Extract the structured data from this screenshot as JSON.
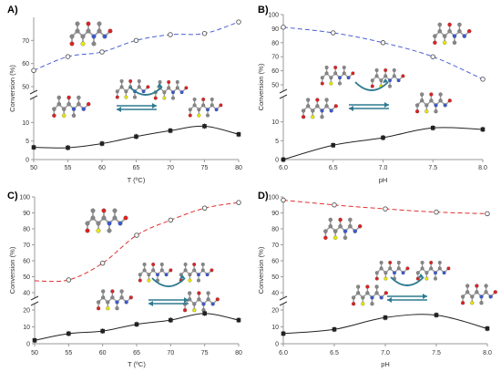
{
  "colors": {
    "panel_A_upper": "#4a5fd0",
    "panel_B_upper": "#4a5fd0",
    "panel_C_upper": "#e03030",
    "panel_D_upper": "#e03030",
    "lower": "#222222",
    "arrow": "#2e7a8f"
  },
  "icons": [
    "molecule-ball-stick-icon",
    "reaction-curved-arrow-icon",
    "equilibrium-arrows-icon"
  ],
  "chart_data": [
    {
      "panel": "A)",
      "type": "line",
      "xlabel": "T (ºC)",
      "ylabel": "Conversion (%)",
      "xlim": [
        50,
        80
      ],
      "xticks": [
        "50",
        "55",
        "60",
        "65",
        "70",
        "75",
        "80"
      ],
      "y_upper": {
        "ylim": [
          50,
          80
        ],
        "ticks": [
          "50",
          "60",
          "70"
        ]
      },
      "y_lower": {
        "ylim": [
          0,
          15
        ],
        "ticks": [
          "0",
          "5",
          "10"
        ]
      },
      "series": [
        {
          "segment": "upper",
          "marker": "open",
          "fit": "dashed",
          "x": [
            50,
            55,
            60,
            65,
            70,
            75,
            80
          ],
          "y": [
            57,
            63,
            65,
            70,
            72.5,
            73,
            78
          ]
        },
        {
          "segment": "lower",
          "marker": "filled",
          "fit": "solid",
          "x": [
            50,
            55,
            60,
            65,
            70,
            75,
            80
          ],
          "y": [
            3.3,
            3.2,
            4.3,
            6.2,
            7.8,
            9,
            6.8
          ]
        }
      ],
      "grid": false
    },
    {
      "panel": "B)",
      "type": "line",
      "xlabel": "pH",
      "ylabel": "Conversion (%)",
      "xlim": [
        6,
        8
      ],
      "xticks": [
        "6.0",
        "6.5",
        "7.0",
        "7.5",
        "8.0"
      ],
      "y_upper": {
        "ylim": [
          50,
          100
        ],
        "ticks": [
          "50",
          "60",
          "70",
          "80",
          "90",
          "100"
        ]
      },
      "y_lower": {
        "ylim": [
          0,
          15
        ],
        "ticks": [
          "0",
          "5",
          "10"
        ]
      },
      "series": [
        {
          "segment": "upper",
          "marker": "open",
          "fit": "dashed",
          "x": [
            6.0,
            6.5,
            7.0,
            7.5,
            8.0
          ],
          "y": [
            91,
            87,
            80,
            70,
            54
          ]
        },
        {
          "segment": "lower",
          "marker": "filled",
          "fit": "solid",
          "x": [
            6.0,
            6.5,
            7.0,
            7.5,
            8.0
          ],
          "y": [
            0,
            3.8,
            5.8,
            8.4,
            8
          ]
        }
      ],
      "grid": false
    },
    {
      "panel": "C)",
      "type": "line",
      "xlabel": "T (ºC)",
      "ylabel": "Conversion (%)",
      "xlim": [
        50,
        80
      ],
      "xticks": [
        "50",
        "55",
        "60",
        "65",
        "70",
        "75",
        "80"
      ],
      "y_upper": {
        "ylim": [
          40,
          100
        ],
        "ticks": [
          "40",
          "50",
          "60",
          "70",
          "80",
          "90",
          "100"
        ]
      },
      "y_lower": {
        "ylim": [
          0,
          20
        ],
        "ticks": [
          "0",
          "10",
          "20"
        ]
      },
      "series": [
        {
          "segment": "upper",
          "marker": "open",
          "fit": "dashed",
          "x": [
            55,
            60,
            65,
            70,
            75,
            80
          ],
          "y": [
            48,
            58.5,
            76,
            85.5,
            93,
            96.5
          ]
        },
        {
          "segment": "lower",
          "marker": "filled",
          "fit": "solid",
          "x": [
            50,
            55,
            60,
            65,
            70,
            75,
            80
          ],
          "y": [
            2,
            6,
            7.5,
            11.5,
            14,
            18,
            14
          ]
        }
      ],
      "grid": false
    },
    {
      "panel": "D)",
      "type": "line",
      "xlabel": "pH",
      "ylabel": "Conversion (%)",
      "xlim": [
        6,
        8
      ],
      "xticks": [
        "6.0",
        "6.5",
        "7.0",
        "7.5",
        "8.0"
      ],
      "y_upper": {
        "ylim": [
          40,
          100
        ],
        "ticks": [
          "40",
          "50",
          "60",
          "70",
          "80",
          "90",
          "100"
        ]
      },
      "y_lower": {
        "ylim": [
          0,
          20
        ],
        "ticks": [
          "0",
          "10",
          "20"
        ]
      },
      "series": [
        {
          "segment": "upper",
          "marker": "open",
          "fit": "dashed",
          "x": [
            6.0,
            6.5,
            7.0,
            7.5,
            8.0
          ],
          "y": [
            98,
            95,
            92.5,
            90.5,
            89.5
          ]
        },
        {
          "segment": "lower",
          "marker": "filled",
          "fit": "solid",
          "x": [
            6.0,
            6.5,
            7.0,
            7.5,
            8.0
          ],
          "y": [
            6,
            8.5,
            15.5,
            17,
            9
          ]
        }
      ],
      "grid": false
    }
  ]
}
